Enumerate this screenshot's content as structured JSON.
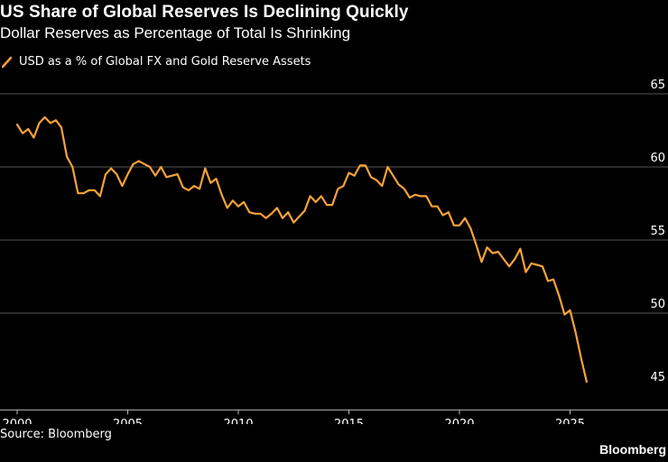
{
  "title": "US Share of Global Reserves Is Declining Quickly",
  "subtitle": "Dollar Reserves as Percentage of Total Is Shrinking",
  "source": "Source: Bloomberg",
  "brand": "Bloomberg",
  "colors": {
    "background": "#000000",
    "line": "#f7a23a",
    "grid": "#555555",
    "text": "#ffffff"
  },
  "chart_data": {
    "type": "line",
    "title": "US Share of Global Reserves Is Declining Quickly",
    "subtitle": "Dollar Reserves as Percentage of Total Is Shrinking",
    "xlabel": "",
    "ylabel": "",
    "xlim": [
      2000,
      2026.5
    ],
    "ylim": [
      44,
      65
    ],
    "x_ticks": [
      2000,
      2005,
      2010,
      2015,
      2020,
      2025
    ],
    "y_ticks": [
      45,
      50,
      55,
      60,
      65
    ],
    "grid": true,
    "y_axis_position": "right",
    "legend_position": "top-left",
    "series": [
      {
        "name": "USD as a % of Global FX and Gold Reserve Assets",
        "color": "#f7a23a",
        "x": [
          2000.0,
          2000.25,
          2000.5,
          2000.75,
          2001.0,
          2001.25,
          2001.5,
          2001.75,
          2002.0,
          2002.25,
          2002.5,
          2002.75,
          2003.0,
          2003.25,
          2003.5,
          2003.75,
          2004.0,
          2004.25,
          2004.5,
          2004.75,
          2005.0,
          2005.25,
          2005.5,
          2005.75,
          2006.0,
          2006.25,
          2006.5,
          2006.75,
          2007.0,
          2007.25,
          2007.5,
          2007.75,
          2008.0,
          2008.25,
          2008.5,
          2008.75,
          2009.0,
          2009.25,
          2009.5,
          2009.75,
          2010.0,
          2010.25,
          2010.5,
          2010.75,
          2011.0,
          2011.25,
          2011.5,
          2011.75,
          2012.0,
          2012.25,
          2012.5,
          2012.75,
          2013.0,
          2013.25,
          2013.5,
          2013.75,
          2014.0,
          2014.25,
          2014.5,
          2014.75,
          2015.0,
          2015.25,
          2015.5,
          2015.75,
          2016.0,
          2016.25,
          2016.5,
          2016.75,
          2017.0,
          2017.25,
          2017.5,
          2017.75,
          2018.0,
          2018.25,
          2018.5,
          2018.75,
          2019.0,
          2019.25,
          2019.5,
          2019.75,
          2020.0,
          2020.25,
          2020.5,
          2020.75,
          2021.0,
          2021.25,
          2021.5,
          2021.75,
          2022.0,
          2022.25,
          2022.5,
          2022.75,
          2023.0,
          2023.25,
          2023.5,
          2023.75,
          2024.0,
          2024.25,
          2024.5,
          2024.75,
          2025.0,
          2025.25,
          2025.5,
          2025.75
        ],
        "values": [
          62.9,
          62.3,
          62.6,
          62.0,
          63.0,
          63.4,
          63.0,
          63.2,
          62.7,
          60.7,
          60.0,
          58.2,
          58.2,
          58.4,
          58.4,
          58.0,
          59.5,
          59.9,
          59.5,
          58.7,
          59.5,
          60.2,
          60.4,
          60.2,
          60.0,
          59.4,
          60.0,
          59.3,
          59.4,
          59.5,
          58.6,
          58.4,
          58.7,
          58.5,
          59.9,
          58.9,
          59.2,
          58.1,
          57.2,
          57.7,
          57.3,
          57.6,
          56.9,
          56.8,
          56.8,
          56.5,
          56.8,
          57.2,
          56.5,
          56.9,
          56.2,
          56.6,
          57.0,
          58.0,
          57.6,
          58.0,
          57.4,
          57.4,
          58.5,
          58.7,
          59.6,
          59.4,
          60.1,
          60.1,
          59.3,
          59.1,
          58.7,
          60.0,
          59.4,
          58.8,
          58.5,
          57.9,
          58.1,
          58.0,
          58.0,
          57.3,
          57.3,
          56.7,
          56.9,
          56.0,
          56.0,
          56.5,
          55.8,
          54.7,
          53.5,
          54.5,
          54.1,
          54.2,
          53.7,
          53.2,
          53.7,
          54.4,
          52.8,
          53.4,
          53.3,
          53.2,
          52.2,
          52.3,
          51.2,
          49.9,
          50.2,
          48.7,
          46.9,
          45.3
        ]
      }
    ]
  }
}
